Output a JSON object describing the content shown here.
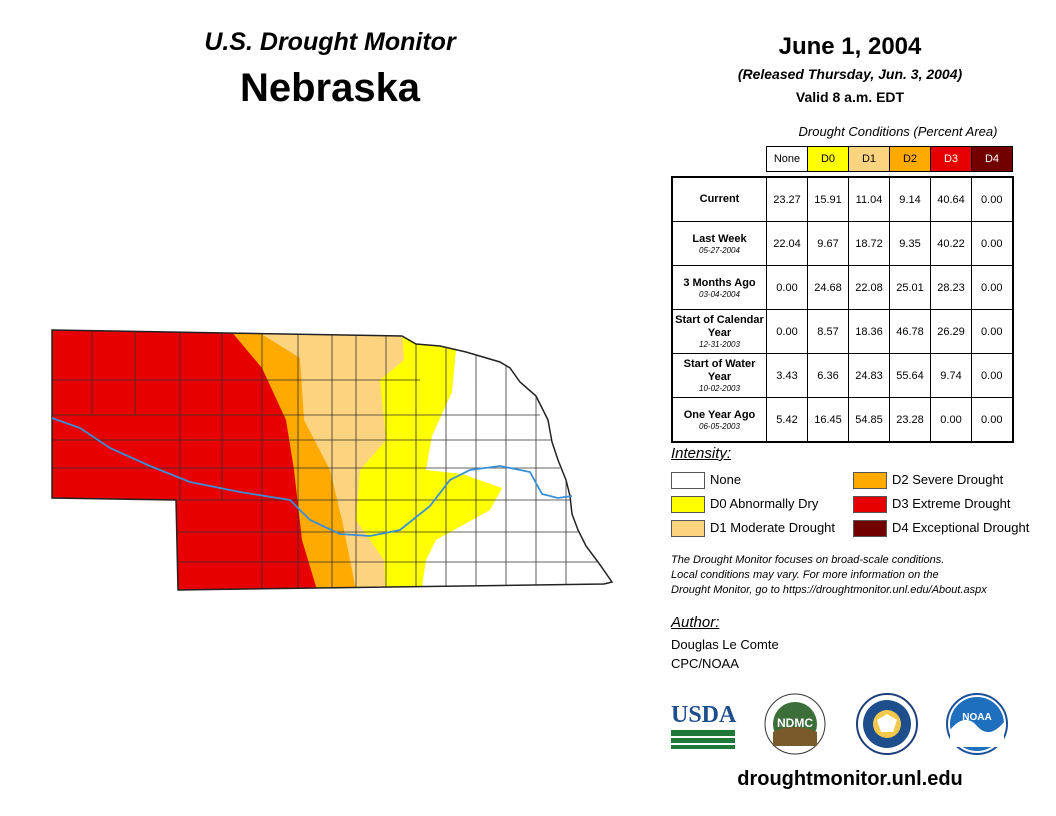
{
  "header": {
    "subtitle": "U.S. Drought Monitor",
    "state": "Nebraska",
    "date": "June 1, 2004",
    "released": "(Released Thursday, Jun. 3, 2004)",
    "valid": "Valid 8 a.m. EDT"
  },
  "table": {
    "caption": "Drought Conditions (Percent Area)",
    "columns": [
      {
        "label": "None",
        "bg": "#ffffff",
        "fg": "#000000"
      },
      {
        "label": "D0",
        "bg": "#ffff00",
        "fg": "#000000"
      },
      {
        "label": "D1",
        "bg": "#fcd37f",
        "fg": "#000000"
      },
      {
        "label": "D2",
        "bg": "#ffaa00",
        "fg": "#000000"
      },
      {
        "label": "D3",
        "bg": "#e60000",
        "fg": "#ffffff"
      },
      {
        "label": "D4",
        "bg": "#730000",
        "fg": "#ffffff"
      }
    ],
    "rows": [
      {
        "label": "Current",
        "date": "",
        "values": [
          "23.27",
          "15.91",
          "11.04",
          "9.14",
          "40.64",
          "0.00"
        ]
      },
      {
        "label": "Last Week",
        "date": "05-27-2004",
        "values": [
          "22.04",
          "9.67",
          "18.72",
          "9.35",
          "40.22",
          "0.00"
        ]
      },
      {
        "label": "3 Months Ago",
        "date": "03-04-2004",
        "values": [
          "0.00",
          "24.68",
          "22.08",
          "25.01",
          "28.23",
          "0.00"
        ]
      },
      {
        "label": "Start of Calendar Year",
        "date": "12-31-2003",
        "values": [
          "0.00",
          "8.57",
          "18.36",
          "46.78",
          "26.29",
          "0.00"
        ]
      },
      {
        "label": "Start of Water Year",
        "date": "10-02-2003",
        "values": [
          "3.43",
          "6.36",
          "24.83",
          "55.64",
          "9.74",
          "0.00"
        ]
      },
      {
        "label": "One Year Ago",
        "date": "06-05-2003",
        "values": [
          "5.42",
          "16.45",
          "54.85",
          "23.28",
          "0.00",
          "0.00"
        ]
      }
    ]
  },
  "legend": {
    "title": "Intensity:",
    "items": [
      {
        "label": "None",
        "color": "#ffffff"
      },
      {
        "label": "D0 Abnormally Dry",
        "color": "#ffff00"
      },
      {
        "label": "D1 Moderate Drought",
        "color": "#fcd37f"
      },
      {
        "label": "D2 Severe Drought",
        "color": "#ffaa00"
      },
      {
        "label": "D3 Extreme Drought",
        "color": "#e60000"
      },
      {
        "label": "D4 Exceptional Drought",
        "color": "#730000"
      }
    ]
  },
  "disclaimer": {
    "line1": "The Drought Monitor focuses on broad-scale conditions.",
    "line2": "Local conditions may vary. For more information on the",
    "line3": "Drought Monitor, go to https://droughtmonitor.unl.edu/About.aspx"
  },
  "author": {
    "title": "Author:",
    "name": "Douglas Le Comte",
    "org": "CPC/NOAA"
  },
  "logos": {
    "usda": "USDA",
    "ndmc": "NDMC",
    "noaa": "NOAA"
  },
  "footer": {
    "url": "droughtmonitor.unl.edu"
  },
  "map_colors": {
    "river": "#3a8fd9",
    "county_line": "#333333"
  }
}
